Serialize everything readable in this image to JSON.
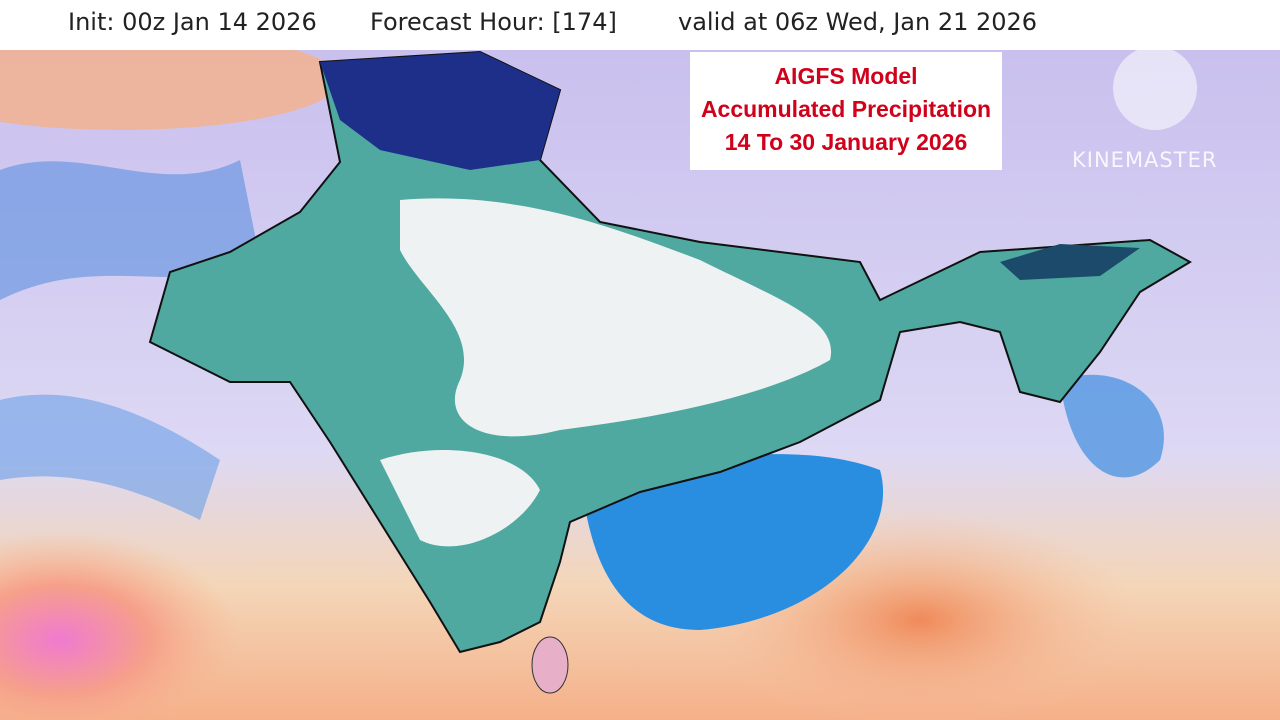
{
  "header": {
    "init": "Init: 00z Jan 14 2026",
    "forecast_hour": "Forecast Hour: [174]",
    "valid": "valid at 06z Wed, Jan 21 2026"
  },
  "title_box": {
    "lines": [
      "AIGFS Model",
      "Accumulated Precipitation",
      "14 To 30 January 2026"
    ]
  },
  "watermark": "KINEMASTER"
}
